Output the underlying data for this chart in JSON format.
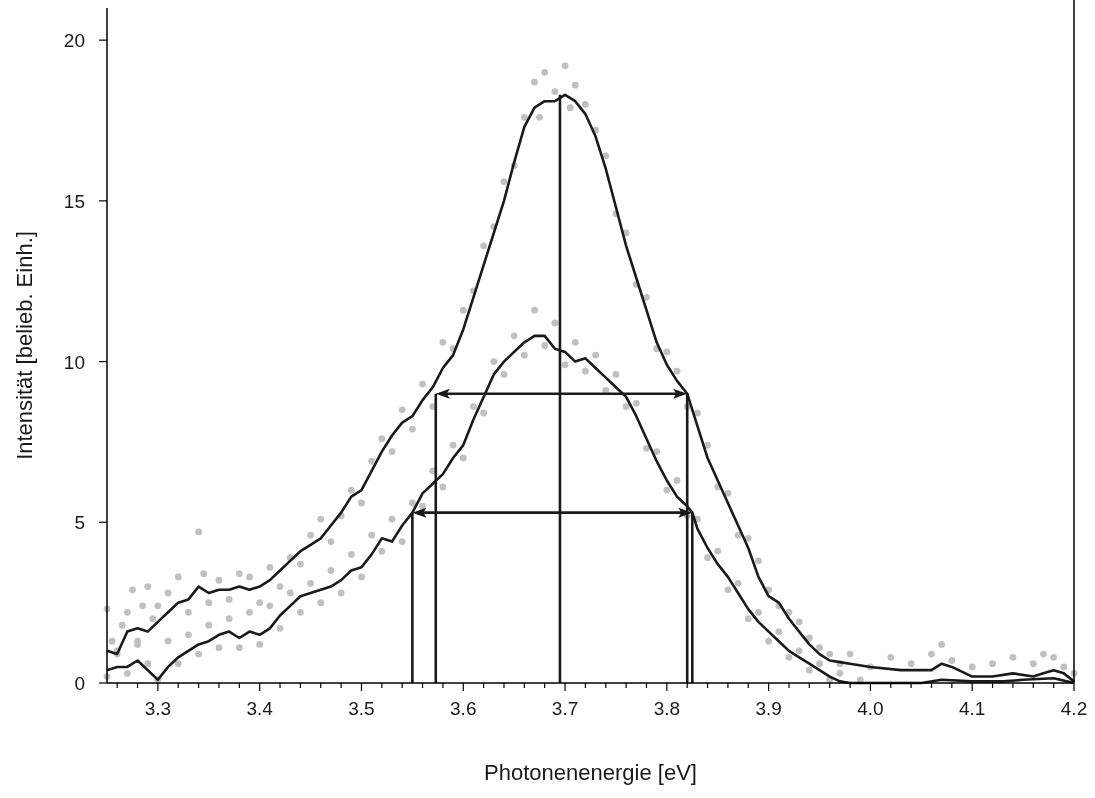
{
  "chart_data": {
    "type": "scatter",
    "xlabel": "Photonenenergie [eV]",
    "ylabel": "Intensität [belieb. Einh.]",
    "xlim": [
      3.25,
      4.2
    ],
    "ylim": [
      0,
      21
    ],
    "grid": false,
    "xticks": [
      {
        "value": 3.26,
        "label": null
      },
      {
        "value": 3.28,
        "label": null
      },
      3.3,
      {
        "value": 3.32,
        "label": null
      },
      {
        "value": 3.34,
        "label": null
      },
      {
        "value": 3.36,
        "label": null
      },
      {
        "value": 3.38,
        "label": null
      },
      3.4,
      {
        "value": 3.42,
        "label": null
      },
      {
        "value": 3.44,
        "label": null
      },
      {
        "value": 3.46,
        "label": null
      },
      {
        "value": 3.48,
        "label": null
      },
      3.5,
      {
        "value": 3.52,
        "label": null
      },
      {
        "value": 3.54,
        "label": null
      },
      {
        "value": 3.56,
        "label": null
      },
      {
        "value": 3.58,
        "label": null
      },
      3.6,
      {
        "value": 3.62,
        "label": null
      },
      {
        "value": 3.64,
        "label": null
      },
      {
        "value": 3.66,
        "label": null
      },
      {
        "value": 3.68,
        "label": null
      },
      3.7,
      {
        "value": 3.72,
        "label": null
      },
      {
        "value": 3.74,
        "label": null
      },
      {
        "value": 3.76,
        "label": null
      },
      {
        "value": 3.78,
        "label": null
      },
      3.8,
      {
        "value": 3.82,
        "label": null
      },
      {
        "value": 3.84,
        "label": null
      },
      {
        "value": 3.86,
        "label": null
      },
      {
        "value": 3.88,
        "label": null
      },
      3.9,
      {
        "value": 3.92,
        "label": null
      },
      {
        "value": 3.94,
        "label": null
      },
      {
        "value": 3.96,
        "label": null
      },
      {
        "value": 3.98,
        "label": null
      },
      {
        "value": 4.0,
        "label": "4.0"
      },
      {
        "value": 4.02,
        "label": null
      },
      {
        "value": 4.04,
        "label": null
      },
      {
        "value": 4.06,
        "label": null
      },
      {
        "value": 4.08,
        "label": null
      },
      4.1,
      {
        "value": 4.12,
        "label": null
      },
      {
        "value": 4.14,
        "label": null
      },
      {
        "value": 4.16,
        "label": null
      },
      {
        "value": 4.18,
        "label": null
      },
      4.2
    ],
    "yticks": [
      0,
      5,
      10,
      15,
      20
    ],
    "series": [
      {
        "marker": "circle",
        "color": "#c0c0c0",
        "x": [
          3.25,
          3.255,
          3.26,
          3.265,
          3.27,
          3.275,
          3.28,
          3.285,
          3.29,
          3.295,
          3.3,
          3.31,
          3.32,
          3.33,
          3.34,
          3.345,
          3.35,
          3.36,
          3.37,
          3.38,
          3.39,
          3.4,
          3.41,
          3.42,
          3.43,
          3.44,
          3.45,
          3.46,
          3.47,
          3.48,
          3.49,
          3.5,
          3.51,
          3.52,
          3.53,
          3.54,
          3.55,
          3.56,
          3.57,
          3.58,
          3.59,
          3.6,
          3.61,
          3.62,
          3.63,
          3.64,
          3.65,
          3.66,
          3.67,
          3.675,
          3.68,
          3.69,
          3.7,
          3.705,
          3.71,
          3.72,
          3.73,
          3.74,
          3.75,
          3.76,
          3.77,
          3.78,
          3.79,
          3.8,
          3.81,
          3.82,
          3.83,
          3.84,
          3.85,
          3.86,
          3.87,
          3.88,
          3.89,
          3.9,
          3.91,
          3.92,
          3.93,
          3.94,
          3.95,
          3.96,
          3.97,
          3.98,
          4.0,
          4.02,
          4.04,
          4.06,
          4.07,
          4.08,
          4.1,
          4.12,
          4.14,
          4.16,
          4.17,
          4.18,
          4.19,
          4.2
        ],
        "values": [
          2.3,
          1.3,
          0.9,
          1.8,
          2.2,
          2.9,
          1.3,
          2.4,
          3.0,
          2.0,
          2.4,
          2.8,
          3.3,
          2.2,
          4.7,
          3.4,
          2.5,
          3.2,
          2.6,
          3.4,
          3.3,
          2.5,
          3.6,
          3.0,
          3.9,
          3.7,
          4.6,
          5.1,
          4.4,
          5.2,
          6.0,
          5.6,
          6.9,
          7.6,
          7.2,
          8.5,
          7.9,
          9.3,
          8.6,
          10.6,
          10.4,
          11.6,
          12.2,
          13.6,
          14.2,
          15.6,
          16.1,
          17.6,
          18.7,
          17.6,
          19.0,
          18.4,
          19.2,
          17.9,
          18.6,
          18.0,
          17.2,
          16.4,
          14.6,
          14.0,
          12.4,
          12.0,
          10.4,
          10.3,
          9.7,
          8.6,
          8.4,
          7.4,
          6.1,
          5.9,
          4.6,
          4.5,
          3.8,
          2.9,
          2.4,
          2.2,
          1.9,
          1.4,
          1.1,
          0.9,
          0.6,
          0.9,
          0.5,
          0.8,
          0.6,
          0.9,
          1.2,
          0.7,
          0.5,
          0.6,
          0.8,
          0.6,
          0.9,
          0.8,
          0.5,
          0.3
        ]
      },
      {
        "marker": "circle",
        "color": "#c0c0c0",
        "x": [
          3.25,
          3.26,
          3.27,
          3.28,
          3.29,
          3.3,
          3.31,
          3.32,
          3.33,
          3.34,
          3.35,
          3.36,
          3.37,
          3.38,
          3.39,
          3.4,
          3.41,
          3.42,
          3.43,
          3.44,
          3.45,
          3.46,
          3.47,
          3.48,
          3.49,
          3.5,
          3.51,
          3.52,
          3.53,
          3.54,
          3.55,
          3.56,
          3.57,
          3.58,
          3.59,
          3.6,
          3.61,
          3.62,
          3.63,
          3.64,
          3.65,
          3.66,
          3.67,
          3.68,
          3.69,
          3.7,
          3.71,
          3.72,
          3.73,
          3.74,
          3.75,
          3.76,
          3.77,
          3.78,
          3.79,
          3.8,
          3.81,
          3.82,
          3.83,
          3.84,
          3.85,
          3.86,
          3.87,
          3.88,
          3.89,
          3.9,
          3.91,
          3.92,
          3.93,
          3.94,
          3.95,
          3.96,
          3.97,
          3.99
        ],
        "values": [
          0.2,
          1.0,
          0.3,
          1.2,
          0.6,
          0.1,
          1.3,
          0.6,
          1.5,
          0.9,
          1.8,
          1.1,
          2.0,
          1.1,
          2.2,
          1.2,
          2.4,
          1.7,
          2.8,
          2.2,
          3.1,
          2.5,
          3.5,
          2.8,
          4.0,
          3.3,
          4.6,
          4.1,
          5.1,
          4.4,
          5.6,
          5.5,
          6.6,
          6.1,
          7.4,
          7.0,
          8.6,
          8.4,
          10.0,
          9.6,
          10.8,
          10.2,
          11.6,
          10.5,
          11.2,
          9.9,
          10.6,
          9.7,
          10.2,
          9.1,
          9.6,
          8.6,
          8.7,
          7.3,
          7.2,
          6.0,
          6.3,
          5.2,
          5.1,
          3.9,
          4.1,
          2.9,
          3.1,
          2.0,
          2.2,
          1.3,
          1.6,
          0.8,
          1.0,
          0.4,
          0.6,
          0.1,
          0.3,
          0.1
        ]
      },
      {
        "type": "line",
        "color": "#1a1a1a",
        "x": [
          3.25,
          3.26,
          3.27,
          3.28,
          3.29,
          3.3,
          3.31,
          3.32,
          3.33,
          3.34,
          3.35,
          3.36,
          3.37,
          3.38,
          3.39,
          3.4,
          3.41,
          3.42,
          3.43,
          3.44,
          3.45,
          3.46,
          3.47,
          3.48,
          3.49,
          3.5,
          3.51,
          3.52,
          3.53,
          3.54,
          3.55,
          3.56,
          3.57,
          3.58,
          3.59,
          3.6,
          3.61,
          3.62,
          3.63,
          3.64,
          3.65,
          3.66,
          3.67,
          3.68,
          3.69,
          3.7,
          3.71,
          3.72,
          3.73,
          3.74,
          3.75,
          3.76,
          3.77,
          3.78,
          3.79,
          3.8,
          3.81,
          3.82,
          3.83,
          3.84,
          3.85,
          3.86,
          3.87,
          3.88,
          3.89,
          3.9,
          3.91,
          3.92,
          3.93,
          3.94,
          3.95,
          3.96,
          3.97,
          3.98,
          4.0,
          4.03,
          4.06,
          4.07,
          4.08,
          4.1,
          4.12,
          4.14,
          4.16,
          4.17,
          4.18,
          4.19,
          4.2
        ],
        "values": [
          1.0,
          0.9,
          1.6,
          1.7,
          1.6,
          1.9,
          2.2,
          2.5,
          2.6,
          3.0,
          2.8,
          2.9,
          2.9,
          3.0,
          2.9,
          3.0,
          3.2,
          3.5,
          3.8,
          4.1,
          4.3,
          4.5,
          4.9,
          5.3,
          5.8,
          6.0,
          6.6,
          7.2,
          7.7,
          8.1,
          8.3,
          8.8,
          9.2,
          9.8,
          10.2,
          11.0,
          12.0,
          13.0,
          14.0,
          15.0,
          16.2,
          17.3,
          17.9,
          18.1,
          18.1,
          18.3,
          18.1,
          17.7,
          17.0,
          16.0,
          14.8,
          13.6,
          12.6,
          11.6,
          10.6,
          9.9,
          9.4,
          9.0,
          8.0,
          7.0,
          6.3,
          5.6,
          4.9,
          4.2,
          3.3,
          2.7,
          2.5,
          2.0,
          1.6,
          1.2,
          0.9,
          0.7,
          0.65,
          0.6,
          0.5,
          0.4,
          0.4,
          0.6,
          0.5,
          0.2,
          0.2,
          0.3,
          0.2,
          0.3,
          0.4,
          0.3,
          0.05
        ]
      },
      {
        "type": "line",
        "color": "#1a1a1a",
        "x": [
          3.25,
          3.26,
          3.27,
          3.28,
          3.29,
          3.3,
          3.31,
          3.32,
          3.33,
          3.34,
          3.35,
          3.36,
          3.37,
          3.38,
          3.39,
          3.4,
          3.41,
          3.42,
          3.43,
          3.44,
          3.45,
          3.46,
          3.47,
          3.48,
          3.49,
          3.5,
          3.51,
          3.52,
          3.53,
          3.54,
          3.55,
          3.56,
          3.57,
          3.58,
          3.59,
          3.6,
          3.61,
          3.62,
          3.63,
          3.64,
          3.65,
          3.66,
          3.67,
          3.68,
          3.69,
          3.7,
          3.71,
          3.72,
          3.73,
          3.74,
          3.75,
          3.76,
          3.77,
          3.78,
          3.79,
          3.8,
          3.81,
          3.82,
          3.825,
          3.83,
          3.84,
          3.85,
          3.86,
          3.87,
          3.88,
          3.89,
          3.9,
          3.91,
          3.92,
          3.93,
          3.94,
          3.95,
          3.96,
          3.97,
          3.98,
          4.0,
          4.05,
          4.07,
          4.1,
          4.13,
          4.15,
          4.18,
          4.2
        ],
        "values": [
          0.4,
          0.5,
          0.5,
          0.7,
          0.4,
          0.1,
          0.5,
          0.8,
          1.0,
          1.2,
          1.3,
          1.5,
          1.6,
          1.4,
          1.6,
          1.5,
          1.7,
          2.1,
          2.4,
          2.7,
          2.8,
          2.9,
          3.0,
          3.2,
          3.5,
          3.6,
          4.0,
          4.5,
          4.4,
          4.9,
          5.3,
          5.9,
          6.2,
          6.5,
          7.0,
          7.4,
          8.2,
          8.9,
          9.6,
          10.0,
          10.3,
          10.6,
          10.8,
          10.8,
          10.4,
          10.3,
          10.0,
          10.1,
          9.8,
          9.5,
          9.2,
          8.9,
          8.3,
          7.6,
          6.9,
          6.3,
          5.8,
          5.5,
          5.3,
          4.8,
          4.2,
          3.7,
          3.3,
          2.8,
          2.3,
          1.9,
          1.6,
          1.3,
          1.0,
          0.8,
          0.6,
          0.4,
          0.2,
          0.05,
          0,
          0,
          0,
          0.1,
          0.05,
          0.05,
          0.1,
          0.15,
          0
        ]
      },
      {
        "type": "line",
        "color": "#1a1a1a",
        "marker": "none",
        "x": [
          3.55,
          3.55
        ],
        "values": [
          0,
          5.3
        ]
      },
      {
        "type": "line",
        "color": "#1a1a1a",
        "marker": "none",
        "x": [
          3.573,
          3.573
        ],
        "values": [
          0,
          9.0
        ]
      },
      {
        "type": "line",
        "color": "#1a1a1a",
        "marker": "none",
        "x": [
          3.695,
          3.695
        ],
        "values": [
          0,
          18.3
        ]
      },
      {
        "type": "line",
        "color": "#1a1a1a",
        "marker": "none",
        "x": [
          3.82,
          3.82
        ],
        "values": [
          0,
          9.0
        ]
      },
      {
        "type": "line",
        "color": "#1a1a1a",
        "marker": "none",
        "x": [
          3.825,
          3.825
        ],
        "values": [
          0,
          5.3
        ]
      }
    ]
  }
}
